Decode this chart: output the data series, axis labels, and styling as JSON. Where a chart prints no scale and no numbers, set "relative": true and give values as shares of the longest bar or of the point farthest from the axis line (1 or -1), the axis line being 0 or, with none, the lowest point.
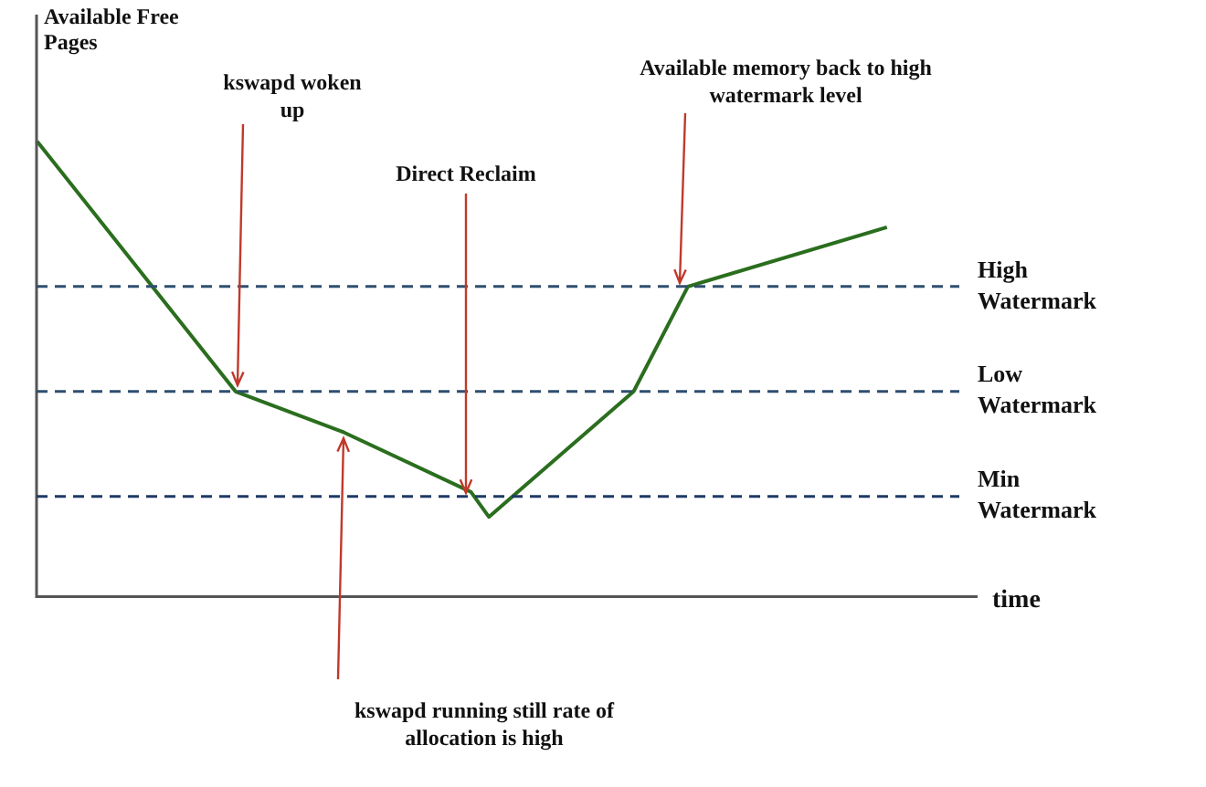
{
  "chart_data": {
    "type": "line",
    "relative": true,
    "ylabel": "Available Free Pages",
    "xlabel": "time",
    "categories": [
      null,
      null,
      null,
      null,
      null,
      null,
      null,
      null,
      null,
      null,
      null,
      null,
      null,
      null,
      null,
      null,
      null,
      null,
      null,
      null,
      null,
      null,
      null,
      null,
      null,
      null,
      null,
      null,
      null,
      null,
      null,
      null,
      null,
      null,
      null,
      null,
      null,
      null,
      null,
      null,
      null,
      null,
      null,
      null,
      null,
      null,
      null,
      null,
      null,
      null,
      null,
      null
    ],
    "values": [
      1,
      null,
      null,
      null,
      null,
      null,
      null,
      null,
      null,
      null,
      null,
      0.45,
      null,
      null,
      null,
      null,
      null,
      0.36,
      null,
      null,
      null,
      null,
      null,
      null,
      0.23,
      0.175,
      null,
      null,
      null,
      null,
      null,
      null,
      null,
      0.45,
      null,
      null,
      0.68,
      null,
      null,
      null,
      null,
      null,
      null,
      null,
      null,
      null,
      null,
      0.81,
      null,
      null,
      null,
      null
    ],
    "color": "#2a6e1e",
    "marker": "none",
    "ref_lines": [
      {
        "axis": "y",
        "value": 0.68,
        "label": "High Watermark",
        "color": "#2f4f6f",
        "line_style": "dashed"
      },
      {
        "axis": "y",
        "value": 0.45,
        "label": "Low Watermark",
        "color": "#2f4f6f",
        "line_style": "dashed"
      },
      {
        "axis": "y",
        "value": 0.22,
        "label": "Min Watermark",
        "color": "#1f3a66",
        "line_style": "dashed"
      }
    ],
    "annotations": [
      "kswapd woken up",
      "Direct Reclaim",
      "Available memory back to high watermark level",
      "kswapd running still rate of allocation is high"
    ]
  }
}
